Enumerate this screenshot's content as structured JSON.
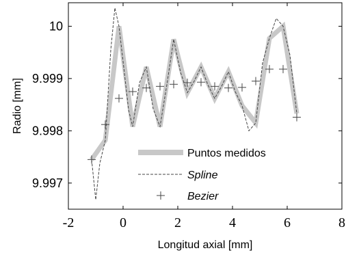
{
  "chart_data": {
    "type": "line",
    "xlabel": "Longitud axial [mm]",
    "ylabel": "Radio [mm]",
    "xlim": [
      -2,
      8
    ],
    "ylim": [
      9.9965,
      10.00045
    ],
    "x_ticks": [
      -2,
      0,
      2,
      4,
      6,
      8
    ],
    "y_ticks": [
      9.997,
      9.998,
      9.999,
      10
    ],
    "x_tick_labels": [
      "-2",
      "0",
      "2",
      "4",
      "6",
      "8"
    ],
    "y_tick_labels": [
      "9.997",
      "9.998",
      "9.999",
      "10"
    ],
    "grid": false,
    "legend_position": "center",
    "series": [
      {
        "name": "Puntos medidos",
        "style": "thick-line",
        "color": "#c8c8c8",
        "x": [
          -1.15,
          -0.65,
          -0.15,
          0.35,
          0.85,
          1.35,
          1.85,
          2.35,
          2.85,
          3.35,
          3.85,
          4.35,
          4.85,
          5.35,
          5.85,
          6.35
        ],
        "y": [
          9.99745,
          9.99782,
          10.0,
          9.99808,
          9.99922,
          9.99808,
          9.99975,
          9.99873,
          9.99922,
          9.99862,
          9.99913,
          9.99848,
          9.99815,
          9.99977,
          10.0,
          9.99833
        ]
      },
      {
        "name": "Spline",
        "style": "dashed-line",
        "color": "#444444",
        "x": [
          -1.15,
          -1.0,
          -0.85,
          -0.65,
          -0.45,
          -0.3,
          -0.15,
          0.05,
          0.2,
          0.35,
          0.6,
          0.85,
          1.1,
          1.35,
          1.6,
          1.85,
          2.1,
          2.35,
          2.6,
          2.85,
          3.1,
          3.35,
          3.6,
          3.85,
          4.1,
          4.35,
          4.6,
          4.85,
          5.1,
          5.35,
          5.6,
          5.85,
          6.1,
          6.35
        ],
        "y": [
          9.99745,
          9.99668,
          9.99738,
          9.99782,
          9.99955,
          10.00035,
          10.0,
          9.9991,
          9.9984,
          9.99808,
          9.99892,
          9.99922,
          9.99842,
          9.99808,
          9.99888,
          9.99975,
          9.99912,
          9.99873,
          9.99895,
          9.99922,
          9.99888,
          9.99862,
          9.99885,
          9.99913,
          9.99875,
          9.99848,
          9.998,
          9.99815,
          9.9993,
          9.99977,
          10.00015,
          10.0,
          9.99945,
          9.99833
        ]
      },
      {
        "name": "Bezier",
        "style": "plus-markers",
        "color": "#444444",
        "x": [
          -1.15,
          -0.65,
          -0.15,
          0.35,
          0.85,
          1.35,
          1.85,
          2.35,
          2.85,
          3.35,
          3.85,
          4.35,
          4.85,
          5.35,
          5.85,
          6.35
        ],
        "y": [
          9.99745,
          9.99812,
          9.99862,
          9.99875,
          9.99882,
          9.99885,
          9.99889,
          9.99892,
          9.99893,
          9.99885,
          9.99882,
          9.99883,
          9.99895,
          9.99918,
          9.99918,
          9.99826
        ]
      }
    ]
  }
}
